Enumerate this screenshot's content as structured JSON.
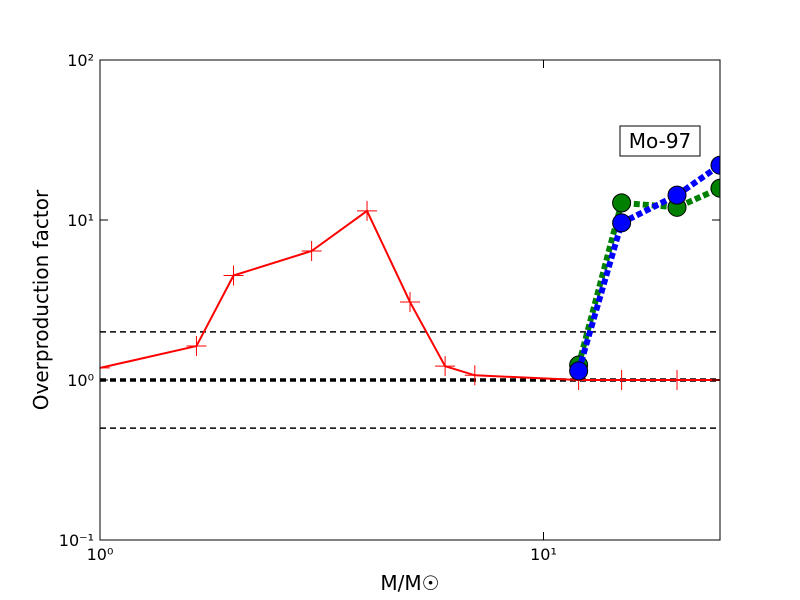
{
  "chart_data": {
    "type": "line",
    "xlabel": "M/M☉",
    "ylabel": "Overproduction factor",
    "annotation": "Mo-97",
    "log_x": true,
    "log_y": true,
    "xlim": [
      1,
      25
    ],
    "ylim": [
      0.1,
      100
    ],
    "xticks": [
      {
        "value": 1,
        "label": "10⁰"
      },
      {
        "value": 10,
        "label": "10¹"
      }
    ],
    "yticks": [
      {
        "value": 0.1,
        "label": "10⁻¹"
      },
      {
        "value": 1,
        "label": "10⁰"
      },
      {
        "value": 10,
        "label": "10¹"
      },
      {
        "value": 100,
        "label": "10²"
      }
    ],
    "hlines": [
      {
        "value": 2,
        "color": "#000000",
        "width": 1.5
      },
      {
        "value": 1,
        "color": "#000000",
        "width": 3.5
      },
      {
        "value": 0.5,
        "color": "#000000",
        "width": 1.5
      }
    ],
    "series": [
      {
        "color": "#ff0000",
        "style": "solid",
        "marker": "plus",
        "x": [
          1,
          1.65,
          2,
          3,
          4,
          5,
          6,
          7,
          12,
          15,
          20,
          25
        ],
        "values": [
          1.19,
          1.63,
          4.5,
          6.4,
          11.4,
          3.07,
          1.22,
          1.07,
          1.0,
          1.0,
          1.0,
          1.0
        ]
      },
      {
        "color": "#008000",
        "style": "dotted",
        "marker": "circle",
        "x": [
          12,
          15,
          20,
          25
        ],
        "values": [
          1.24,
          12.8,
          12.0,
          15.8
        ]
      },
      {
        "color": "#0000ff",
        "style": "dotted",
        "marker": "circle",
        "x": [
          12,
          15,
          20,
          25
        ],
        "values": [
          1.14,
          9.6,
          14.3,
          22
        ]
      }
    ]
  }
}
